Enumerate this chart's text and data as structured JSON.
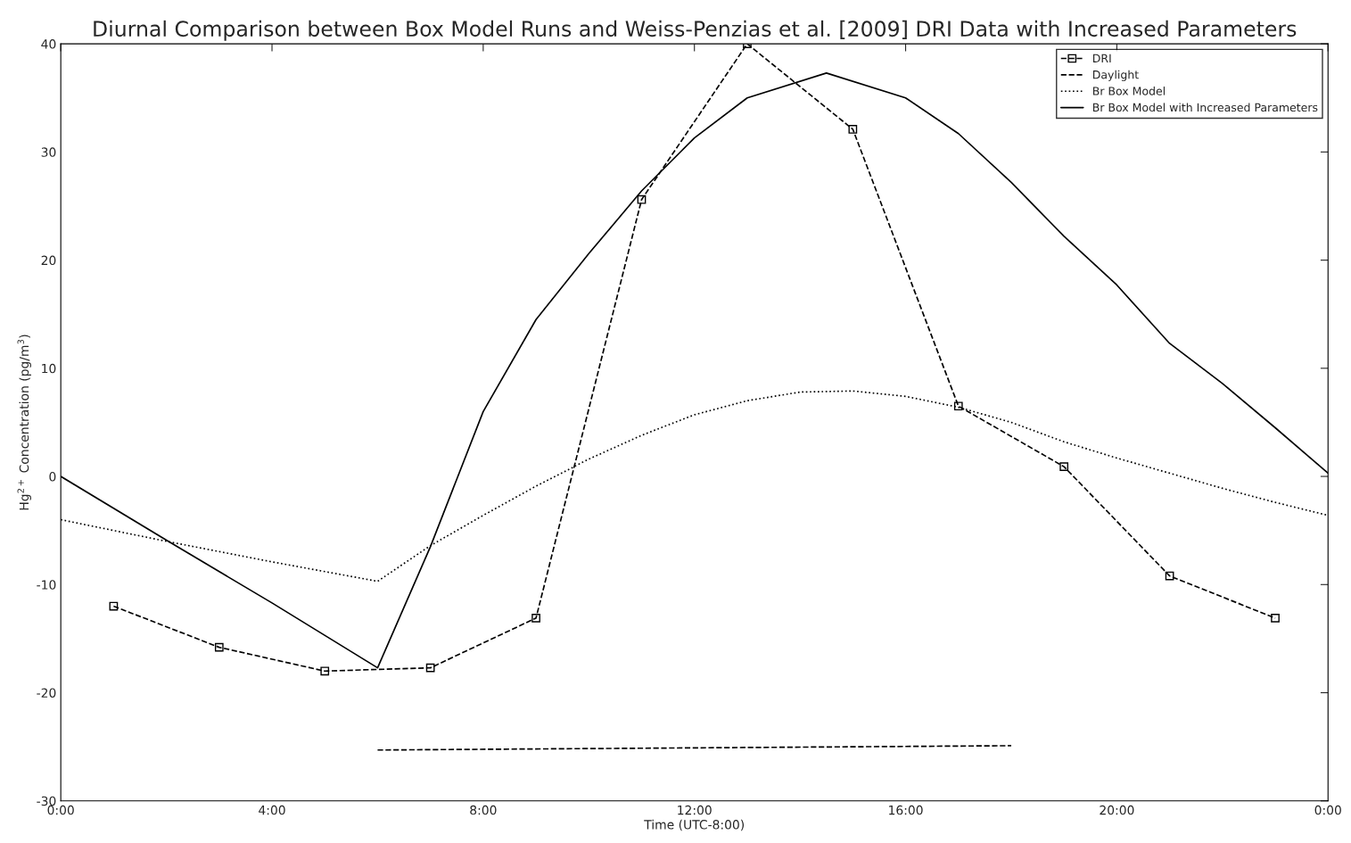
{
  "chart_data": {
    "type": "line",
    "title": "Diurnal Comparison between Box Model Runs and Weiss-Penzias et al. [2009] DRI Data with Increased Parameters",
    "xlabel": "Time (UTC-8:00)",
    "ylabel": "Hg$^{2+}$ Concentration (pg/m$^{3}$)",
    "xlim": [
      0,
      24
    ],
    "xticks": [
      {
        "value": 0,
        "label": "0:00"
      },
      {
        "value": 4,
        "label": "4:00"
      },
      {
        "value": 8,
        "label": "8:00"
      },
      {
        "value": 12,
        "label": "12:00"
      },
      {
        "value": 16,
        "label": "16:00"
      },
      {
        "value": 20,
        "label": "20:00"
      },
      {
        "value": 24,
        "label": "0:00"
      }
    ],
    "ylim": [
      -30,
      40
    ],
    "yticks": [
      -30,
      -20,
      -10,
      0,
      10,
      20,
      30,
      40
    ],
    "grid": false,
    "legend": "top right",
    "series": [
      {
        "name": "DRI",
        "color": "#000000",
        "line_style": "dashed",
        "marker": "square",
        "x": [
          1,
          3,
          5,
          7,
          9,
          11,
          13,
          15,
          17,
          19,
          21,
          23
        ],
        "values": [
          -12.0,
          -15.8,
          -18.0,
          -17.7,
          -13.1,
          25.6,
          40.0,
          32.1,
          6.5,
          0.9,
          -9.2,
          -13.1
        ]
      },
      {
        "name": "Daylight",
        "color": "#000000",
        "line_style": "dashed",
        "marker": "none",
        "x": [
          6,
          18
        ],
        "values": [
          -25.3,
          -24.9
        ]
      },
      {
        "name": "Br Box Model",
        "color": "#000000",
        "line_style": "dotted",
        "marker": "none",
        "x": [
          0,
          2,
          4,
          6,
          7,
          8,
          9,
          10,
          11,
          12,
          13,
          14,
          15,
          16,
          17,
          18,
          19,
          20,
          21,
          22,
          23,
          24
        ],
        "values": [
          -4.0,
          -6.0,
          -7.9,
          -9.7,
          -6.4,
          -3.6,
          -0.9,
          1.6,
          3.8,
          5.7,
          7.0,
          7.8,
          7.9,
          7.4,
          6.4,
          5.0,
          3.2,
          1.7,
          0.3,
          -1.1,
          -2.4,
          -3.6
        ]
      },
      {
        "name": "Br Box Model with Increased Parameters",
        "color": "#000000",
        "line_style": "solid",
        "marker": "none",
        "x": [
          0,
          2,
          4,
          6,
          7,
          8,
          9,
          10,
          11,
          12,
          13,
          14.5,
          16,
          17,
          18,
          19,
          20,
          21,
          22,
          23,
          24
        ],
        "values": [
          0,
          -5.9,
          -11.7,
          -17.7,
          -6.5,
          6.0,
          14.5,
          20.6,
          26.4,
          31.3,
          35.0,
          37.3,
          35.0,
          31.7,
          27.2,
          22.2,
          17.7,
          12.3,
          8.6,
          4.5,
          0.3
        ]
      }
    ]
  }
}
